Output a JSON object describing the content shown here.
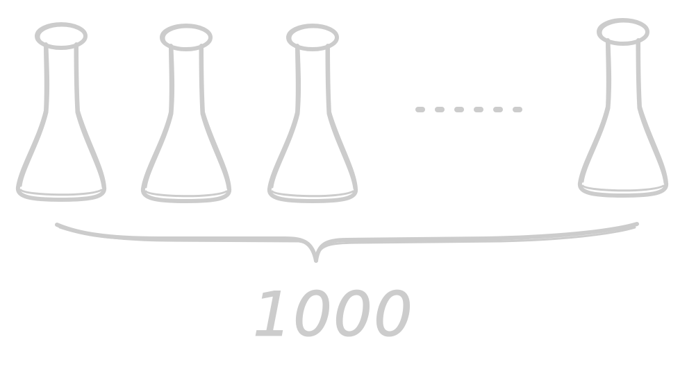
{
  "diagram": {
    "flask_count_visible": 4,
    "ellipsis": "......",
    "count_label": "1000",
    "stroke_color": "#cccccc"
  }
}
